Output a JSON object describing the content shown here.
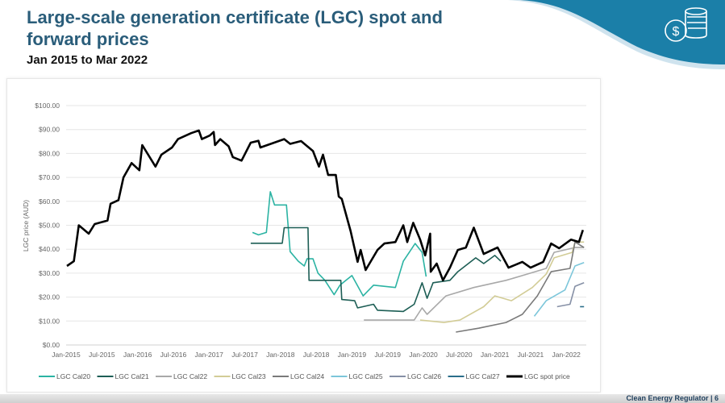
{
  "slide": {
    "title": "Large-scale generation certificate (LGC) spot and forward prices",
    "subtitle": "Jan 2015 to Mar 2022",
    "footer": "Clean Energy Regulator | 6",
    "icon": "dollar-coins-icon",
    "accent_color": "#1b7fa8"
  },
  "chart_data": {
    "type": "line",
    "title": "",
    "xlabel": "",
    "ylabel": "LGC price (AUD)",
    "ylim": [
      0,
      100
    ],
    "y_ticks": [
      "$0.00",
      "$10.00",
      "$20.00",
      "$30.00",
      "$40.00",
      "$50.00",
      "$60.00",
      "$70.00",
      "$80.00",
      "$90.00",
      "$100.00"
    ],
    "x_ticks": [
      "Jan-2015",
      "Jul-2015",
      "Jan-2016",
      "Jul-2016",
      "Jan-2017",
      "Jul-2017",
      "Jan-2018",
      "Jul-2018",
      "Jan-2019",
      "Jul-2019",
      "Jan-2020",
      "Jul-2020",
      "Jan-2021",
      "Jul-2021",
      "Jan-2022"
    ],
    "x_tick_dates": [
      "2015-01-01",
      "2015-07-01",
      "2016-01-01",
      "2016-07-01",
      "2017-01-01",
      "2017-07-01",
      "2018-01-01",
      "2018-07-01",
      "2019-01-01",
      "2019-07-01",
      "2020-01-01",
      "2020-07-01",
      "2021-01-01",
      "2021-07-01",
      "2022-01-01"
    ],
    "grid": true,
    "legend_position": "bottom",
    "series": [
      {
        "name": "LGC Cal20",
        "color": "#2bb3a3",
        "points": [
          [
            "2017-08-10",
            47
          ],
          [
            "2017-09-10",
            46
          ],
          [
            "2017-10-20",
            47
          ],
          [
            "2017-11-10",
            64
          ],
          [
            "2017-12-01",
            58.5
          ],
          [
            "2018-02-01",
            58.5
          ],
          [
            "2018-02-20",
            39
          ],
          [
            "2018-04-01",
            35
          ],
          [
            "2018-05-01",
            33
          ],
          [
            "2018-05-15",
            36
          ],
          [
            "2018-06-15",
            36
          ],
          [
            "2018-07-10",
            30
          ],
          [
            "2018-08-15",
            27
          ],
          [
            "2018-10-01",
            21
          ],
          [
            "2018-11-01",
            25
          ],
          [
            "2018-12-01",
            27
          ],
          [
            "2019-01-01",
            29
          ],
          [
            "2019-02-28",
            20.5
          ],
          [
            "2019-04-20",
            25
          ],
          [
            "2019-08-10",
            24
          ],
          [
            "2019-09-20",
            35
          ],
          [
            "2019-11-20",
            42.4
          ],
          [
            "2019-12-25",
            38.7
          ],
          [
            "2020-01-15",
            28.6
          ]
        ]
      },
      {
        "name": "LGC Cal21",
        "color": "#1d5e55",
        "points": [
          [
            "2017-08-01",
            42.5
          ],
          [
            "2018-01-10",
            42.5
          ],
          [
            "2018-01-20",
            49
          ],
          [
            "2018-05-20",
            49
          ],
          [
            "2018-05-25",
            27
          ],
          [
            "2018-11-05",
            27
          ],
          [
            "2018-11-10",
            19
          ],
          [
            "2019-01-15",
            18.5
          ],
          [
            "2019-01-30",
            15.5
          ],
          [
            "2019-04-20",
            17
          ],
          [
            "2019-05-10",
            14.5
          ],
          [
            "2019-09-20",
            14
          ],
          [
            "2019-11-15",
            17
          ],
          [
            "2019-12-25",
            26
          ],
          [
            "2020-01-20",
            19.5
          ],
          [
            "2020-02-20",
            26
          ],
          [
            "2020-05-15",
            27
          ],
          [
            "2020-06-25",
            30.6
          ],
          [
            "2020-09-25",
            36.4
          ],
          [
            "2020-11-05",
            34
          ],
          [
            "2021-01-01",
            37.4
          ],
          [
            "2021-02-01",
            35
          ]
        ]
      },
      {
        "name": "LGC Cal22",
        "color": "#a8a8a8",
        "points": [
          [
            "2019-03-01",
            10.4
          ],
          [
            "2019-11-15",
            10.4
          ],
          [
            "2019-12-25",
            15.5
          ],
          [
            "2020-01-20",
            12.8
          ],
          [
            "2020-04-25",
            20.5
          ],
          [
            "2020-09-15",
            24
          ],
          [
            "2021-02-28",
            27
          ],
          [
            "2021-05-20",
            29
          ],
          [
            "2021-09-20",
            32
          ],
          [
            "2021-10-30",
            38.7
          ],
          [
            "2022-02-15",
            40.7
          ],
          [
            "2022-03-31",
            40.7
          ]
        ]
      },
      {
        "name": "LGC Cal23",
        "color": "#d2cc96",
        "points": [
          [
            "2019-12-15",
            10.4
          ],
          [
            "2020-04-15",
            9.4
          ],
          [
            "2020-07-05",
            10.4
          ],
          [
            "2020-11-05",
            16
          ],
          [
            "2021-01-01",
            20.5
          ],
          [
            "2021-03-25",
            18.5
          ],
          [
            "2021-07-10",
            24
          ],
          [
            "2021-09-20",
            29.6
          ],
          [
            "2021-10-30",
            36.4
          ],
          [
            "2022-02-01",
            38.7
          ],
          [
            "2022-02-15",
            43
          ],
          [
            "2022-03-31",
            43
          ]
        ]
      },
      {
        "name": "LGC Cal24",
        "color": "#7a7a7a",
        "points": [
          [
            "2020-06-15",
            5.4
          ],
          [
            "2020-10-10",
            7
          ],
          [
            "2021-02-28",
            9.4
          ],
          [
            "2021-05-20",
            12.8
          ],
          [
            "2021-08-05",
            20.5
          ],
          [
            "2021-10-15",
            30.6
          ],
          [
            "2022-01-20",
            32
          ],
          [
            "2022-02-15",
            43
          ],
          [
            "2022-03-31",
            40.7
          ]
        ]
      },
      {
        "name": "LGC Cal25",
        "color": "#7cc6da",
        "points": [
          [
            "2021-07-20",
            12
          ],
          [
            "2021-09-20",
            18.5
          ],
          [
            "2021-12-25",
            23
          ],
          [
            "2022-02-15",
            33
          ],
          [
            "2022-03-31",
            34.4
          ]
        ]
      },
      {
        "name": "LGC Cal26",
        "color": "#8690a6",
        "points": [
          [
            "2021-11-15",
            16
          ],
          [
            "2022-01-20",
            17
          ],
          [
            "2022-02-15",
            24.5
          ],
          [
            "2022-03-31",
            26
          ]
        ]
      },
      {
        "name": "LGC Cal27",
        "color": "#2a6e8a",
        "points": [
          [
            "2022-03-10",
            16
          ],
          [
            "2022-03-31",
            16
          ]
        ]
      },
      {
        "name": "LGC spot price",
        "color": "#000000",
        "points": [
          [
            "2015-01-05",
            33
          ],
          [
            "2015-02-10",
            35
          ],
          [
            "2015-03-05",
            50
          ],
          [
            "2015-04-25",
            46.5
          ],
          [
            "2015-05-25",
            50.5
          ],
          [
            "2015-07-30",
            52
          ],
          [
            "2015-08-15",
            59
          ],
          [
            "2015-09-25",
            60.5
          ],
          [
            "2015-10-20",
            70
          ],
          [
            "2015-12-01",
            76
          ],
          [
            "2016-01-10",
            73
          ],
          [
            "2016-01-25",
            83.5
          ],
          [
            "2016-04-01",
            74.5
          ],
          [
            "2016-05-01",
            79.5
          ],
          [
            "2016-06-25",
            82.5
          ],
          [
            "2016-07-25",
            86
          ],
          [
            "2016-10-01",
            88.5
          ],
          [
            "2016-11-10",
            89.6
          ],
          [
            "2016-11-25",
            86
          ],
          [
            "2017-01-05",
            87.5
          ],
          [
            "2017-01-25",
            89
          ],
          [
            "2017-02-01",
            83.5
          ],
          [
            "2017-02-28",
            86
          ],
          [
            "2017-04-10",
            83
          ],
          [
            "2017-05-01",
            78.5
          ],
          [
            "2017-06-15",
            77
          ],
          [
            "2017-08-01",
            84.5
          ],
          [
            "2017-09-10",
            85.3
          ],
          [
            "2017-09-20",
            82.5
          ],
          [
            "2018-01-20",
            86
          ],
          [
            "2018-02-20",
            84
          ],
          [
            "2018-04-15",
            85.2
          ],
          [
            "2018-06-15",
            81
          ],
          [
            "2018-07-15",
            74.5
          ],
          [
            "2018-08-05",
            79.5
          ],
          [
            "2018-09-01",
            71
          ],
          [
            "2018-10-10",
            71
          ],
          [
            "2018-10-25",
            62
          ],
          [
            "2018-11-10",
            61
          ],
          [
            "2018-12-25",
            47.5
          ],
          [
            "2019-01-30",
            34.7
          ],
          [
            "2019-02-15",
            39.7
          ],
          [
            "2019-03-10",
            31.3
          ],
          [
            "2019-05-10",
            39.7
          ],
          [
            "2019-06-15",
            42.4
          ],
          [
            "2019-08-10",
            43
          ],
          [
            "2019-09-20",
            50
          ],
          [
            "2019-10-10",
            43
          ],
          [
            "2019-11-10",
            51
          ],
          [
            "2019-12-15",
            44
          ],
          [
            "2020-01-10",
            37.4
          ],
          [
            "2020-02-05",
            46.5
          ],
          [
            "2020-02-08",
            30.6
          ],
          [
            "2020-03-08",
            34
          ],
          [
            "2020-04-10",
            27
          ],
          [
            "2020-05-15",
            32.3
          ],
          [
            "2020-06-25",
            39.7
          ],
          [
            "2020-08-05",
            40.7
          ],
          [
            "2020-09-15",
            49
          ],
          [
            "2020-11-05",
            38
          ],
          [
            "2021-01-15",
            40.7
          ],
          [
            "2021-03-10",
            32.3
          ],
          [
            "2021-05-20",
            34.7
          ],
          [
            "2021-07-01",
            32.3
          ],
          [
            "2021-09-05",
            34.7
          ],
          [
            "2021-10-15",
            42.4
          ],
          [
            "2021-11-25",
            40.4
          ],
          [
            "2022-01-25",
            44
          ],
          [
            "2022-03-05",
            43
          ],
          [
            "2022-03-25",
            48
          ]
        ]
      }
    ]
  }
}
